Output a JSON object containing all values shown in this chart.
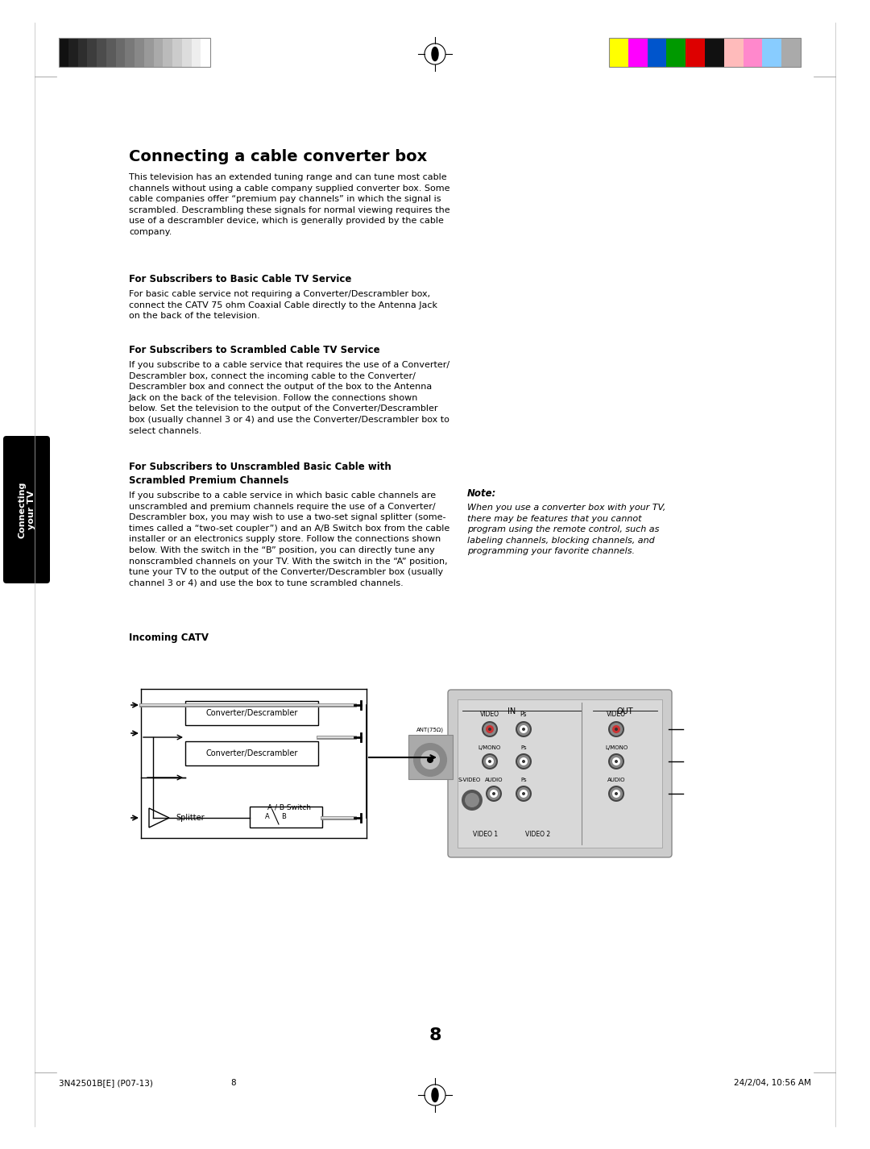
{
  "page_bg": "#ffffff",
  "title": "Connecting a cable converter box",
  "title_fontsize": 14,
  "body_fontsize": 8.0,
  "section_title_fontsize": 8.5,
  "color_bars_left": [
    "#111111",
    "#1f1f1f",
    "#2e2e2e",
    "#3d3d3d",
    "#4c4c4c",
    "#5b5b5b",
    "#6a6a6a",
    "#797979",
    "#888888",
    "#999999",
    "#aaaaaa",
    "#bbbbbb",
    "#cccccc",
    "#dddddd",
    "#eeeeee",
    "#ffffff"
  ],
  "color_bars_right": [
    "#ffff00",
    "#ff00ff",
    "#0055cc",
    "#009900",
    "#dd0000",
    "#111111",
    "#ffbbbb",
    "#ff88cc",
    "#88ccff",
    "#aaaaaa"
  ],
  "footer_left": "3N42501B[E] (P07-13)",
  "footer_center": "8",
  "footer_right": "24/2/04, 10:56 AM",
  "page_number": "8",
  "side_tab_text": "Connecting\nyour TV"
}
